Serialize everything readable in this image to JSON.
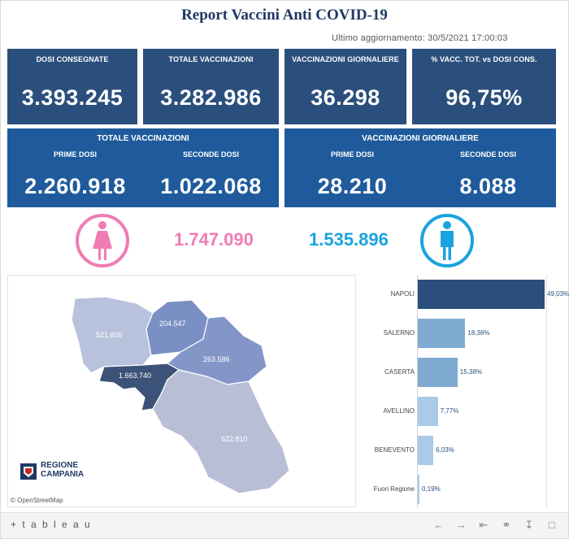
{
  "header": {
    "title": "Report Vaccini Anti COVID-19",
    "updated": "Ultimo aggiornamento: 30/5/2021 17:00:03"
  },
  "kpis": [
    {
      "label": "DOSI  CONSEGNATE",
      "value": "3.393.245"
    },
    {
      "label": "TOTALE VACCINAZIONI",
      "value": "3.282.986"
    },
    {
      "label": "VACCINAZIONI GIORNALIERE",
      "value": "36.298"
    },
    {
      "label": "% VACC. TOT. vs DOSI CONS.",
      "value": "96,75%"
    }
  ],
  "totale": {
    "header": "TOTALE VACCINAZIONI",
    "prime_label": "PRIME DOSI",
    "prime_value": "2.260.918",
    "seconde_label": "SECONDE DOSI",
    "seconde_value": "1.022.068"
  },
  "giornaliere": {
    "header": "VACCINAZIONI GIORNALIERE",
    "prime_label": "PRIME DOSI",
    "prime_value": "28.210",
    "seconde_label": "SECONDE DOSI",
    "seconde_value": "8.088"
  },
  "gender": {
    "female_value": "1.747.090",
    "male_value": "1.535.896",
    "female_color": "#f07cb4",
    "male_color": "#1aa3de"
  },
  "map": {
    "caserta": "521.826",
    "benevento": "204.547",
    "avellino": "263.586",
    "napoli": "1.663.740",
    "salerno": "622.810",
    "logo_line1": "REGIONE",
    "logo_line2": "CAMPANIA",
    "attribution": "© OpenStreetMap"
  },
  "chart_data": {
    "type": "bar",
    "orientation": "horizontal",
    "categories": [
      "NAPOLI",
      "SALERNO",
      "CASERTA",
      "AVELLINO",
      "BENEVENTO",
      "Fuori Regione"
    ],
    "values": [
      49.03,
      18.36,
      15.38,
      7.77,
      6.03,
      0.19
    ],
    "labels": [
      "49,03%",
      "18,36%",
      "15,38%",
      "7,77%",
      "6,03%",
      "0,19%"
    ],
    "colors": [
      "#2b4f7d",
      "#7fabd3",
      "#7fabd3",
      "#a9cbe8",
      "#a9cbe8",
      "#a9cbe8"
    ],
    "xlim": [
      0,
      49.03
    ]
  },
  "toolbar": {
    "logo": "+ t a b l e a u"
  }
}
